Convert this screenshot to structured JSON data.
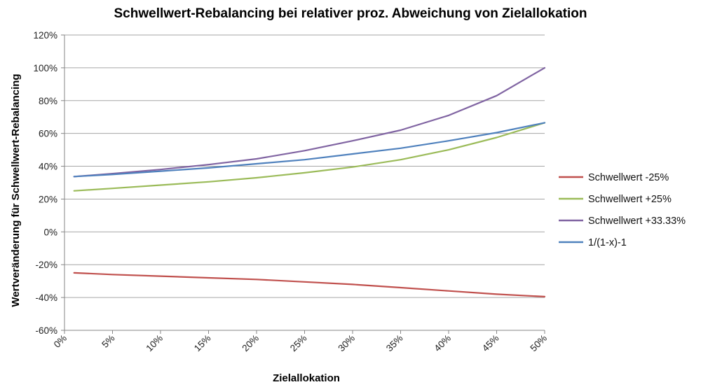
{
  "chart_data": {
    "type": "line",
    "title": "Schwellwert-Rebalancing bei relativer proz. Abweichung von Zielallokation",
    "xlabel": "Zielallokation",
    "ylabel": "Wertveränderung für Schwellwert-Rebalancing",
    "xlim": [
      0,
      0.5
    ],
    "ylim": [
      -0.6,
      1.2
    ],
    "x_ticks": [
      "0%",
      "5%",
      "10%",
      "15%",
      "20%",
      "25%",
      "30%",
      "35%",
      "40%",
      "45%",
      "50%"
    ],
    "y_ticks": [
      "120%",
      "100%",
      "80%",
      "60%",
      "40%",
      "20%",
      "0%",
      "-20%",
      "-40%",
      "-60%"
    ],
    "grid": "horizontal",
    "legend": "right",
    "x": [
      0.01,
      0.05,
      0.1,
      0.15,
      0.2,
      0.25,
      0.3,
      0.35,
      0.4,
      0.45,
      0.5
    ],
    "series": [
      {
        "name": "Schwellwert -25%",
        "color": "#c0504d",
        "values": [
          -0.25,
          -0.26,
          -0.27,
          -0.28,
          -0.29,
          -0.305,
          -0.32,
          -0.34,
          -0.36,
          -0.38,
          -0.395
        ]
      },
      {
        "name": "Schwellwert +25%",
        "color": "#9bbb59",
        "values": [
          0.25,
          0.265,
          0.285,
          0.305,
          0.33,
          0.36,
          0.395,
          0.44,
          0.5,
          0.575,
          0.665
        ]
      },
      {
        "name": "Schwellwert +33.33%",
        "color": "#8064a2",
        "values": [
          0.337,
          0.355,
          0.38,
          0.41,
          0.445,
          0.495,
          0.555,
          0.62,
          0.71,
          0.83,
          1.0
        ]
      },
      {
        "name": "1/(1-x)-1",
        "color": "#4f81bd",
        "values": [
          0.337,
          0.35,
          0.37,
          0.39,
          0.415,
          0.44,
          0.475,
          0.51,
          0.555,
          0.605,
          0.665
        ]
      }
    ]
  }
}
